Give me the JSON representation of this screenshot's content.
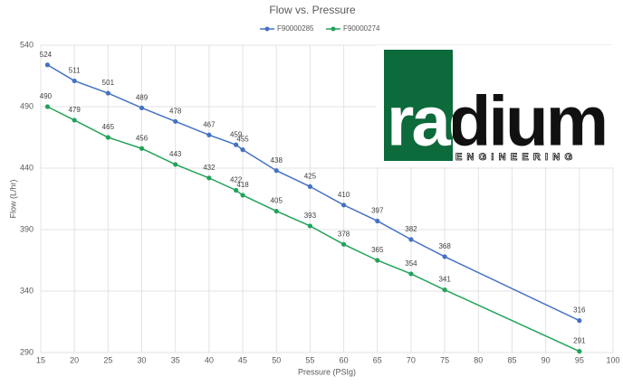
{
  "chart_data": {
    "type": "line",
    "title": "Flow vs. Pressure",
    "x_label": "Pressure (PSIg)",
    "y_label": "Flow (L/hr)",
    "x": [
      16,
      20,
      25,
      30,
      35,
      40,
      44,
      45,
      50,
      55,
      60,
      65,
      70,
      75,
      95
    ],
    "series": [
      {
        "name": "F90000285",
        "color": "#4472c4",
        "values": [
          524,
          511,
          501,
          489,
          478,
          467,
          459,
          455,
          438,
          425,
          410,
          397,
          382,
          368,
          316
        ]
      },
      {
        "name": "F90000274",
        "color": "#22a35a",
        "values": [
          490,
          479,
          465,
          456,
          443,
          432,
          422,
          418,
          405,
          393,
          378,
          365,
          354,
          341,
          291
        ]
      }
    ],
    "xlim": [
      15,
      100
    ],
    "xticks": [
      15,
      20,
      25,
      30,
      35,
      40,
      45,
      50,
      55,
      60,
      65,
      70,
      75,
      80,
      85,
      90,
      95,
      100
    ],
    "ylim": [
      290,
      540
    ],
    "yticks": [
      290,
      340,
      390,
      440,
      490,
      540
    ],
    "grid": true,
    "legend": "top",
    "annotations": [
      "radium",
      "ENGINEERING"
    ]
  }
}
